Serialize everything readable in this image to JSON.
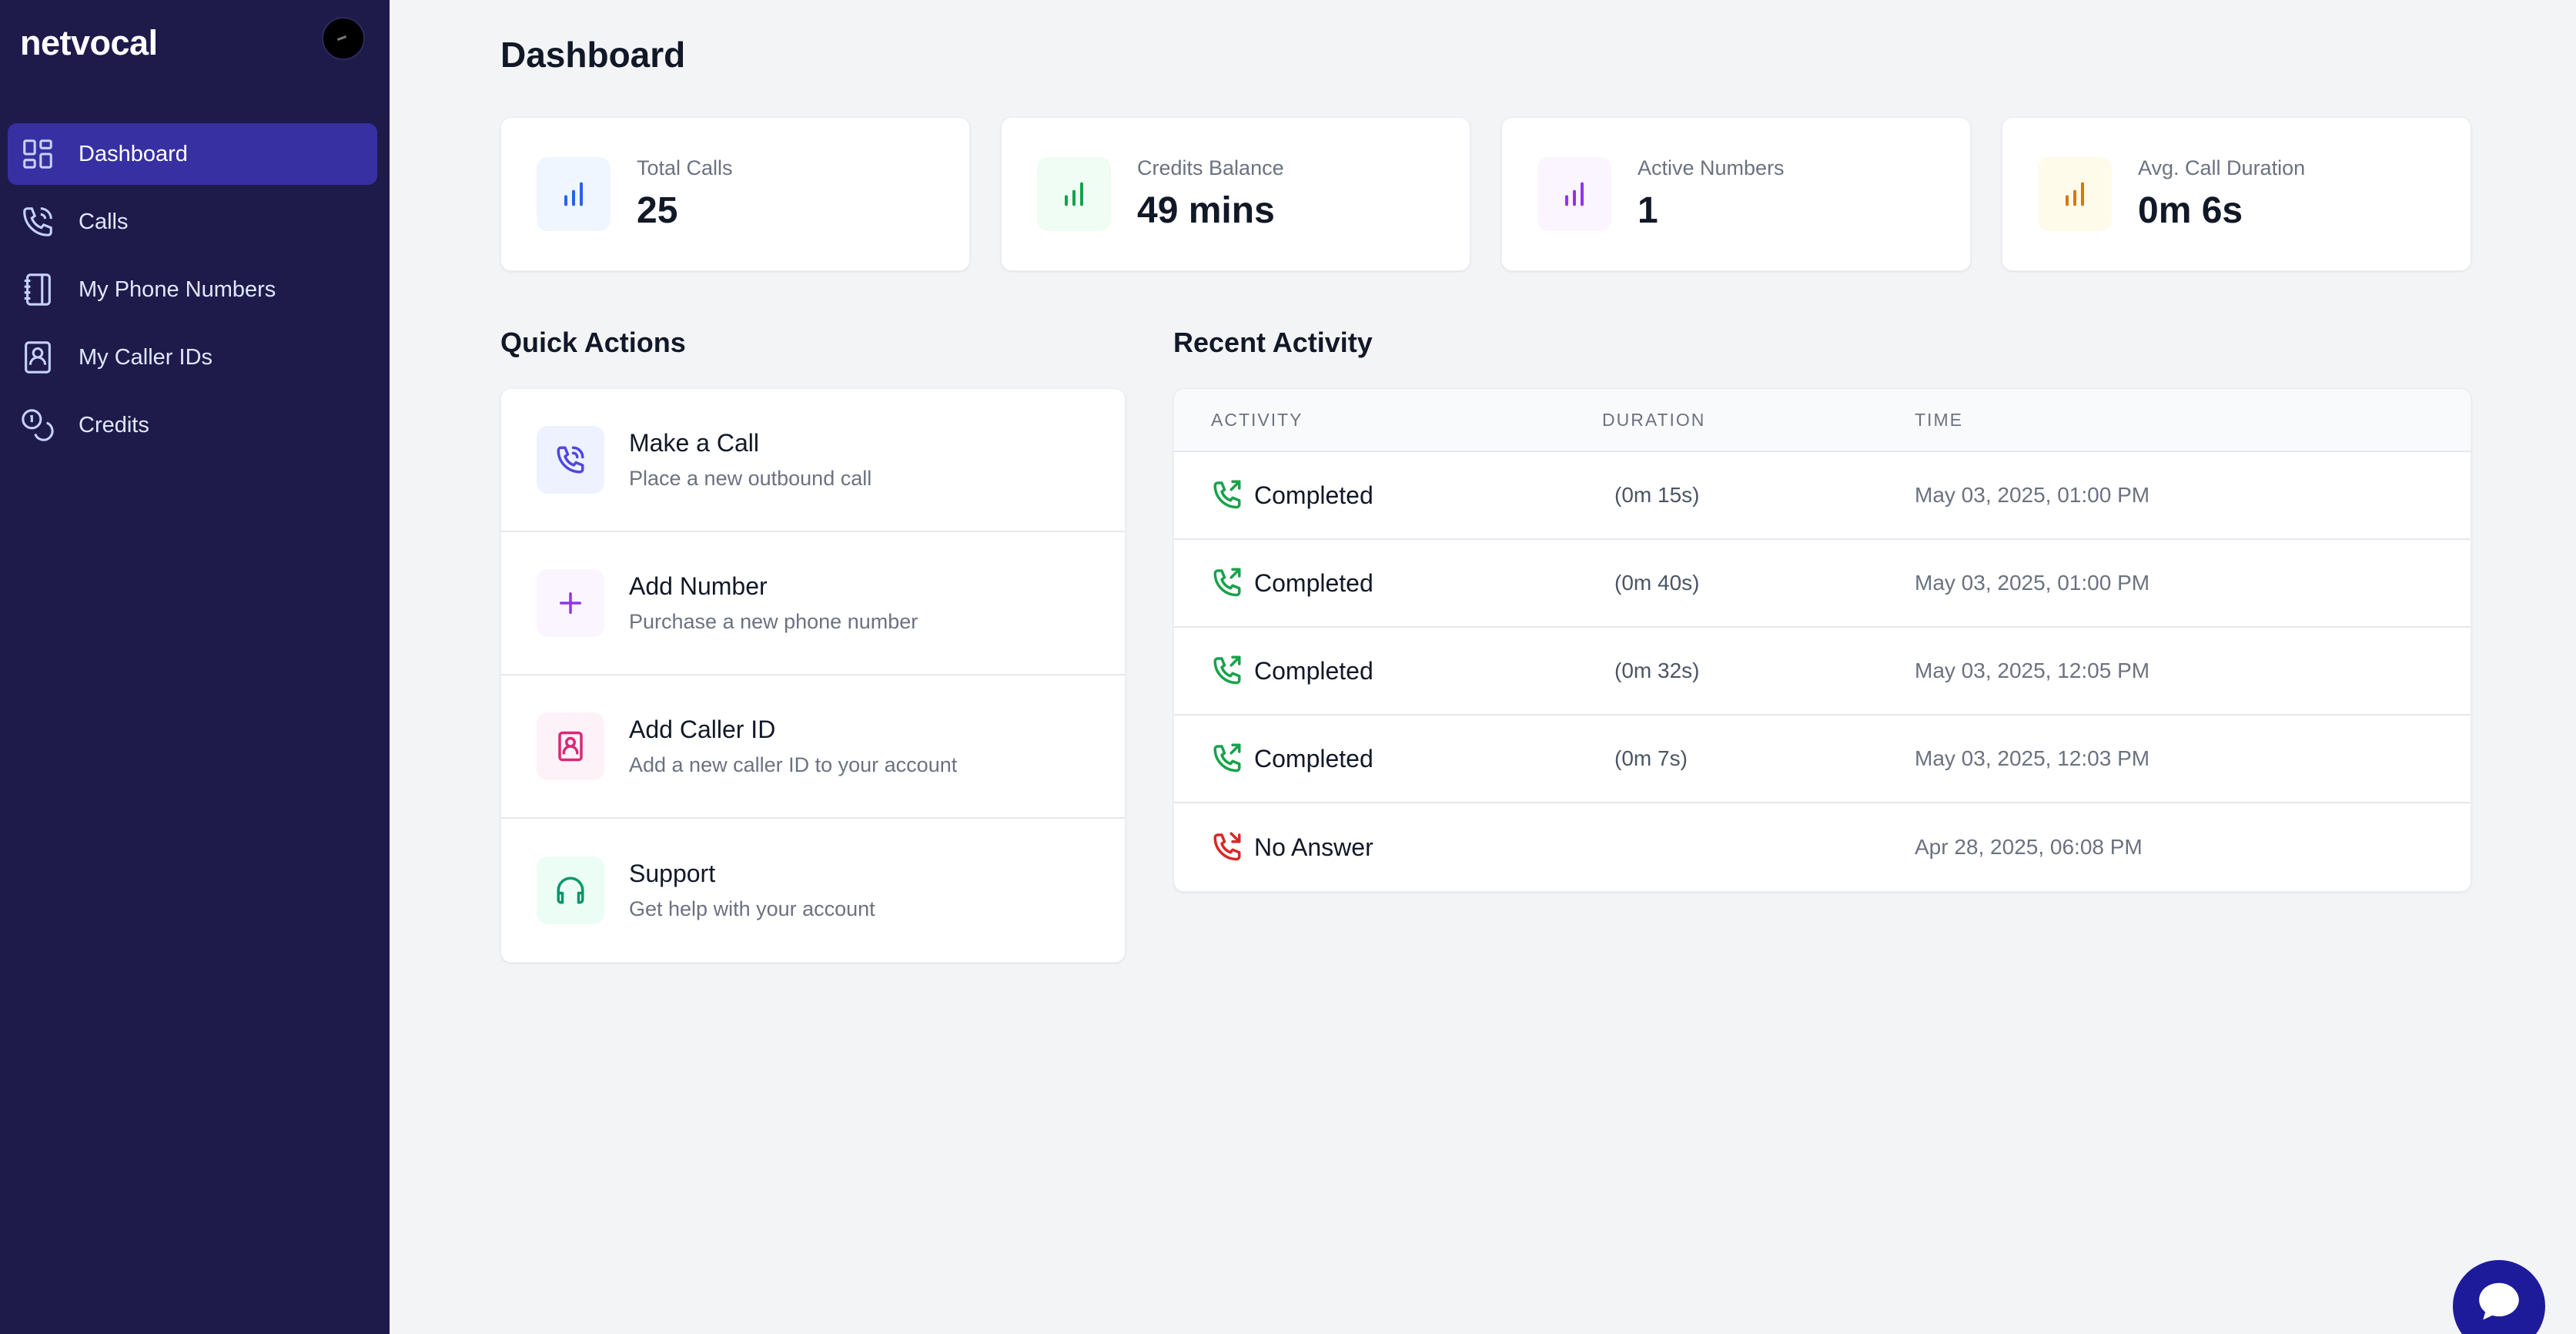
{
  "brand": "netvocal",
  "sidebar": {
    "items": [
      {
        "label": "Dashboard",
        "icon": "dashboard-grid-icon",
        "active": true
      },
      {
        "label": "Calls",
        "icon": "phone-icon"
      },
      {
        "label": "My Phone Numbers",
        "icon": "notebook-icon"
      },
      {
        "label": "My Caller IDs",
        "icon": "contact-book-icon"
      },
      {
        "label": "Credits",
        "icon": "coins-icon"
      }
    ]
  },
  "page": {
    "title": "Dashboard"
  },
  "stats": [
    {
      "label": "Total Calls",
      "value": "25",
      "icon": "bar-chart-icon",
      "color": "#2563eb",
      "bg": "#eff6ff"
    },
    {
      "label": "Credits Balance",
      "value": "49 mins",
      "icon": "bar-chart-icon",
      "color": "#16a34a",
      "bg": "#f0fdf4"
    },
    {
      "label": "Active Numbers",
      "value": "1",
      "icon": "bar-chart-icon",
      "color": "#9333ea",
      "bg": "#faf5ff"
    },
    {
      "label": "Avg. Call Duration",
      "value": "0m 6s",
      "icon": "bar-chart-icon",
      "color": "#d97706",
      "bg": "#fffbeb"
    }
  ],
  "quick_actions": {
    "title": "Quick Actions",
    "items": [
      {
        "title": "Make a Call",
        "subtitle": "Place a new outbound call",
        "icon": "phone-icon",
        "color": "#4f46e5",
        "bg": "#eef2ff"
      },
      {
        "title": "Add Number",
        "subtitle": "Purchase a new phone number",
        "icon": "plus-icon",
        "color": "#9333ea",
        "bg": "#faf5ff"
      },
      {
        "title": "Add Caller ID",
        "subtitle": "Add a new caller ID to your account",
        "icon": "contact-book-icon",
        "color": "#db2777",
        "bg": "#fdf2f8"
      },
      {
        "title": "Support",
        "subtitle": "Get help with your account",
        "icon": "headphones-icon",
        "color": "#059669",
        "bg": "#ecfdf5"
      }
    ]
  },
  "recent_activity": {
    "title": "Recent Activity",
    "columns": [
      "ACTIVITY",
      "DURATION",
      "TIME"
    ],
    "rows": [
      {
        "status": "Completed",
        "duration": "(0m 15s)",
        "time": "May 03, 2025, 01:00 PM",
        "icon": "phone-outgoing-icon",
        "color": "#16a34a"
      },
      {
        "status": "Completed",
        "duration": "(0m 40s)",
        "time": "May 03, 2025, 01:00 PM",
        "icon": "phone-outgoing-icon",
        "color": "#16a34a"
      },
      {
        "status": "Completed",
        "duration": "(0m 32s)",
        "time": "May 03, 2025, 12:05 PM",
        "icon": "phone-outgoing-icon",
        "color": "#16a34a"
      },
      {
        "status": "Completed",
        "duration": "(0m 7s)",
        "time": "May 03, 2025, 12:03 PM",
        "icon": "phone-outgoing-icon",
        "color": "#16a34a"
      },
      {
        "status": "No Answer",
        "duration": "",
        "time": "Apr 28, 2025, 06:08 PM",
        "icon": "phone-missed-icon",
        "color": "#dc2626"
      }
    ]
  }
}
